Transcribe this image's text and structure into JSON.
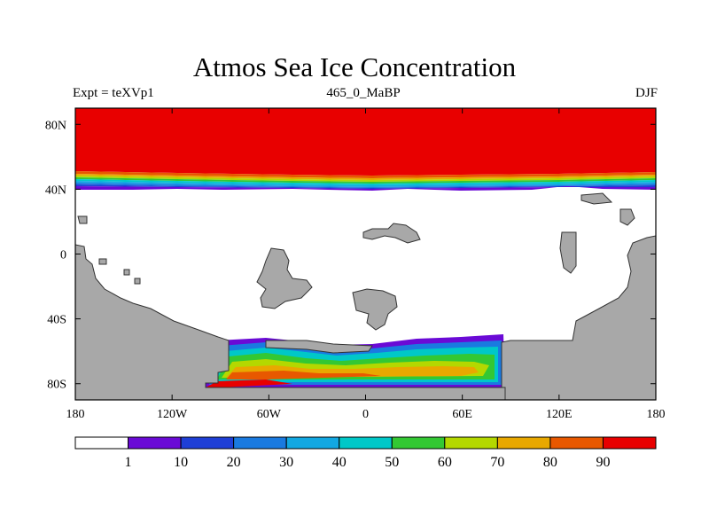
{
  "title": "Atmos Sea Ice Concentration",
  "left_string": "Expt = teXVp1",
  "center_string": "465_0_MaBP",
  "right_string": "DJF",
  "axes": {
    "x_ticks": [
      {
        "lon": -180,
        "label": "180"
      },
      {
        "lon": -120,
        "label": "120W"
      },
      {
        "lon": -60,
        "label": "60W"
      },
      {
        "lon": 0,
        "label": "0"
      },
      {
        "lon": 60,
        "label": "60E"
      },
      {
        "lon": 120,
        "label": "120E"
      },
      {
        "lon": 180,
        "label": "180"
      }
    ],
    "y_ticks": [
      {
        "lat": 80,
        "label": "80N"
      },
      {
        "lat": 40,
        "label": "40N"
      },
      {
        "lat": 0,
        "label": "0"
      },
      {
        "lat": -40,
        "label": "40S"
      },
      {
        "lat": -80,
        "label": "80S"
      }
    ],
    "lon_range": [
      -180,
      180
    ],
    "lat_range": [
      -90,
      90
    ]
  },
  "colorbar": {
    "levels": [
      "1",
      "10",
      "20",
      "30",
      "40",
      "50",
      "60",
      "70",
      "80",
      "90"
    ],
    "colors": [
      "#ffffff",
      "#6a0ad6",
      "#1f3fd6",
      "#1a7ae0",
      "#12a8e2",
      "#00c8c8",
      "#33c833",
      "#b4d800",
      "#e8a800",
      "#e85800",
      "#e80000"
    ]
  },
  "land_color": "#a8a8a8"
}
